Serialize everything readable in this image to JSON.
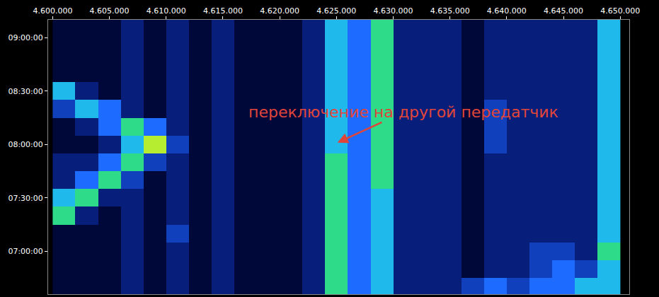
{
  "chart_data": {
    "type": "heatmap",
    "x": [
      4601000,
      4603000,
      4605000,
      4607000,
      4609000,
      4611000,
      4613000,
      4615000,
      4617000,
      4619000,
      4621000,
      4623000,
      4625000,
      4627000,
      4629000,
      4631000,
      4633000,
      4635000,
      4637000,
      4639000,
      4641000,
      4643000,
      4645000,
      4647000,
      4649000
    ],
    "y": [
      400,
      410,
      420,
      430,
      440,
      450,
      460,
      470,
      480,
      490,
      500,
      510,
      520,
      530,
      540,
      550
    ],
    "z": [
      [
        2,
        2,
        2,
        3,
        2,
        3,
        2,
        3,
        2,
        2,
        2,
        3,
        7,
        5,
        6,
        3,
        3,
        3,
        4,
        5,
        4,
        5,
        5,
        6,
        6
      ],
      [
        2,
        2,
        2,
        3,
        2,
        3,
        2,
        3,
        2,
        2,
        2,
        3,
        7,
        5,
        6,
        3,
        3,
        3,
        2,
        3,
        3,
        4,
        5,
        4,
        6
      ],
      [
        2,
        2,
        2,
        3,
        2,
        3,
        2,
        3,
        2,
        2,
        2,
        3,
        7,
        5,
        6,
        3,
        3,
        3,
        2,
        3,
        3,
        4,
        4,
        3,
        7
      ],
      [
        2,
        2,
        2,
        3,
        2,
        4,
        2,
        3,
        2,
        2,
        2,
        3,
        7,
        5,
        6,
        3,
        3,
        3,
        2,
        3,
        3,
        3,
        3,
        3,
        6
      ],
      [
        7,
        3,
        2,
        3,
        2,
        3,
        2,
        3,
        2,
        2,
        2,
        3,
        7,
        5,
        6,
        3,
        3,
        3,
        2,
        3,
        3,
        3,
        3,
        3,
        6
      ],
      [
        6,
        7,
        3,
        3,
        2,
        3,
        2,
        3,
        2,
        2,
        2,
        3,
        7,
        5,
        6,
        3,
        3,
        3,
        2,
        3,
        3,
        3,
        3,
        3,
        6
      ],
      [
        3,
        5,
        7,
        4,
        2,
        3,
        2,
        3,
        2,
        2,
        2,
        3,
        7,
        5,
        7,
        3,
        3,
        3,
        2,
        3,
        3,
        3,
        3,
        3,
        6
      ],
      [
        3,
        3,
        5,
        7,
        4,
        3,
        2,
        3,
        2,
        2,
        2,
        3,
        7,
        5,
        7,
        3,
        3,
        3,
        2,
        3,
        3,
        3,
        3,
        3,
        6
      ],
      [
        2,
        2,
        3,
        6,
        8,
        4,
        2,
        3,
        2,
        2,
        2,
        3,
        6,
        5,
        7,
        3,
        3,
        3,
        2,
        4,
        3,
        3,
        3,
        3,
        6
      ],
      [
        2,
        3,
        5,
        7,
        5,
        3,
        2,
        3,
        2,
        2,
        2,
        3,
        6,
        5,
        7,
        3,
        3,
        3,
        2,
        4,
        3,
        3,
        3,
        3,
        6
      ],
      [
        4,
        6,
        5,
        3,
        2,
        3,
        2,
        3,
        2,
        2,
        2,
        3,
        6,
        5,
        7,
        3,
        3,
        3,
        2,
        4,
        3,
        3,
        3,
        3,
        6
      ],
      [
        6,
        3,
        2,
        3,
        2,
        3,
        2,
        3,
        2,
        2,
        2,
        3,
        6,
        5,
        7,
        3,
        3,
        3,
        2,
        3,
        3,
        3,
        3,
        3,
        6
      ],
      [
        2,
        2,
        2,
        3,
        2,
        3,
        2,
        3,
        2,
        2,
        2,
        3,
        6,
        5,
        7,
        3,
        3,
        3,
        2,
        3,
        3,
        3,
        3,
        3,
        6
      ],
      [
        2,
        2,
        2,
        3,
        2,
        3,
        2,
        3,
        2,
        2,
        2,
        3,
        6,
        5,
        7,
        3,
        3,
        3,
        2,
        3,
        3,
        3,
        3,
        3,
        6
      ],
      [
        2,
        2,
        2,
        3,
        2,
        3,
        2,
        3,
        2,
        2,
        2,
        3,
        6,
        5,
        7,
        3,
        3,
        3,
        2,
        3,
        3,
        3,
        3,
        3,
        6
      ],
      [
        2,
        2,
        2,
        3,
        2,
        3,
        2,
        3,
        2,
        2,
        2,
        3,
        6,
        5,
        7,
        3,
        3,
        3,
        2,
        3,
        3,
        3,
        3,
        3,
        6
      ]
    ],
    "zlim": [
      0,
      10
    ],
    "xlim": [
      4599600,
      4650800
    ],
    "xticks": [
      {
        "value": 4600000,
        "label": "4.600.000"
      },
      {
        "value": 4605000,
        "label": "4.605.000"
      },
      {
        "value": 4610000,
        "label": "4.610.000"
      },
      {
        "value": 4615000,
        "label": "4.615.000"
      },
      {
        "value": 4620000,
        "label": "4.620.000"
      },
      {
        "value": 4625000,
        "label": "4.625.000"
      },
      {
        "value": 4630000,
        "label": "4.630.000"
      },
      {
        "value": 4635000,
        "label": "4.635.000"
      },
      {
        "value": 4640000,
        "label": "4.640.000"
      },
      {
        "value": 4645000,
        "label": "4.645.000"
      },
      {
        "value": 4650000,
        "label": "4.650.000"
      }
    ],
    "ylim": [
      396,
      550
    ],
    "yticks": [
      {
        "value": 420,
        "label": "07:00:00"
      },
      {
        "value": 450,
        "label": "07:30:00"
      },
      {
        "value": 480,
        "label": "08:00:00"
      },
      {
        "value": 510,
        "label": "08:30:00"
      },
      {
        "value": 540,
        "label": "09:00:00"
      }
    ],
    "grid": false,
    "annotations": [
      {
        "text": "переключение на другой передатчик",
        "x": 4625090,
        "y": 481,
        "color": "#e0453a"
      }
    ]
  }
}
